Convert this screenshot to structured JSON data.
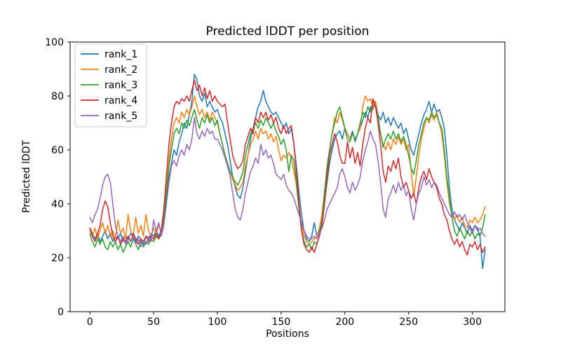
{
  "figure": {
    "background": "#ffffff",
    "spine_color": "#000000",
    "legend_border_color": "#cccccc",
    "legend_background": "#ffffff"
  },
  "chart_data": {
    "type": "line",
    "title": "Predicted lDDT per position",
    "xlabel": "Positions",
    "ylabel": "Predicted lDDT",
    "xlim": [
      -15.5,
      325.5
    ],
    "ylim": [
      0,
      100
    ],
    "x_ticks": [
      0,
      50,
      100,
      150,
      200,
      250,
      300
    ],
    "y_ticks": [
      0,
      20,
      40,
      60,
      80,
      100
    ],
    "grid": false,
    "legend_position": "upper left",
    "x_start": 0,
    "x_step": 2,
    "series": [
      {
        "name": "rank_1",
        "color": "#1f77b4",
        "values": [
          31,
          29,
          27,
          29,
          26,
          28,
          30,
          27,
          29,
          26,
          28,
          27,
          29,
          26,
          28,
          27,
          29,
          28,
          26,
          28,
          27,
          25,
          28,
          27,
          29,
          28,
          30,
          28,
          30,
          34,
          42,
          50,
          55,
          60,
          58,
          63,
          66,
          70,
          68,
          73,
          78,
          88,
          86,
          80,
          78,
          81,
          76,
          78,
          76,
          74,
          75,
          72,
          70,
          66,
          62,
          56,
          50,
          46,
          43,
          42,
          46,
          52,
          58,
          64,
          68,
          72,
          76,
          78,
          82,
          78,
          76,
          74,
          73,
          74,
          72,
          70,
          68,
          70,
          66,
          68,
          62,
          54,
          44,
          36,
          30,
          27,
          26,
          28,
          33,
          28,
          30,
          33,
          40,
          48,
          55,
          60,
          64,
          66,
          67,
          64,
          68,
          66,
          64,
          67,
          63,
          66,
          68,
          71,
          74,
          72,
          76,
          75,
          78,
          73,
          71,
          74,
          70,
          72,
          69,
          72,
          70,
          68,
          70,
          66,
          68,
          64,
          60,
          58,
          62,
          66,
          70,
          73,
          75,
          78,
          74,
          77,
          74,
          75,
          72,
          68,
          58,
          46,
          38,
          34,
          32,
          30,
          33,
          31,
          29,
          32,
          30,
          32,
          31,
          28,
          16,
          23
        ]
      },
      {
        "name": "rank_2",
        "color": "#ff7f0e",
        "values": [
          30,
          28,
          31,
          27,
          30,
          33,
          29,
          32,
          28,
          30,
          27,
          34,
          29,
          31,
          27,
          36,
          30,
          28,
          35,
          29,
          32,
          28,
          36,
          30,
          28,
          31,
          29,
          32,
          30,
          36,
          46,
          56,
          64,
          70,
          72,
          70,
          74,
          72,
          75,
          73,
          76,
          80,
          76,
          73,
          75,
          72,
          74,
          71,
          74,
          72,
          70,
          66,
          62,
          58,
          55,
          52,
          49,
          47,
          45,
          46,
          48,
          54,
          58,
          62,
          64,
          67,
          64,
          68,
          66,
          67,
          64,
          66,
          63,
          65,
          60,
          56,
          58,
          57,
          59,
          57,
          52,
          47,
          38,
          33,
          28,
          26,
          25,
          26,
          27,
          28,
          31,
          36,
          44,
          52,
          60,
          66,
          72,
          70,
          74,
          71,
          68,
          66,
          64,
          66,
          64,
          66,
          68,
          76,
          80,
          78,
          79,
          76,
          78,
          72,
          66,
          62,
          60,
          63,
          60,
          64,
          62,
          65,
          62,
          64,
          60,
          62,
          52,
          43,
          50,
          58,
          64,
          68,
          72,
          70,
          73,
          71,
          74,
          70,
          66,
          58,
          48,
          40,
          36,
          34,
          36,
          33,
          35,
          32,
          31,
          34,
          33,
          35,
          33,
          34,
          36,
          39
        ]
      },
      {
        "name": "rank_3",
        "color": "#2ca02c",
        "values": [
          29,
          26,
          24,
          27,
          25,
          27,
          24,
          23,
          26,
          24,
          26,
          23,
          25,
          22,
          24,
          26,
          24,
          27,
          25,
          23,
          26,
          24,
          26,
          25,
          27,
          26,
          28,
          27,
          29,
          35,
          44,
          54,
          60,
          66,
          68,
          66,
          70,
          68,
          71,
          69,
          72,
          75,
          71,
          68,
          72,
          70,
          73,
          70,
          72,
          69,
          71,
          66,
          62,
          58,
          55,
          52,
          50,
          48,
          47,
          49,
          52,
          58,
          62,
          66,
          68,
          70,
          68,
          71,
          69,
          72,
          70,
          68,
          70,
          67,
          65,
          62,
          64,
          60,
          52,
          58,
          56,
          48,
          38,
          30,
          26,
          24,
          25,
          23,
          26,
          25,
          28,
          34,
          44,
          54,
          60,
          66,
          70,
          74,
          76,
          72,
          68,
          64,
          63,
          66,
          64,
          66,
          70,
          74,
          72,
          76,
          74,
          78,
          76,
          72,
          66,
          61,
          64,
          66,
          64,
          67,
          64,
          66,
          63,
          65,
          62,
          58,
          53,
          51,
          56,
          62,
          66,
          70,
          72,
          71,
          74,
          72,
          73,
          70,
          68,
          60,
          50,
          42,
          35,
          30,
          28,
          31,
          29,
          27,
          30,
          28,
          30,
          27,
          29,
          28,
          31,
          36
        ]
      },
      {
        "name": "rank_4",
        "color": "#d62728",
        "values": [
          31,
          28,
          26,
          29,
          32,
          38,
          41,
          39,
          33,
          28,
          26,
          28,
          25,
          27,
          26,
          28,
          26,
          29,
          27,
          25,
          27,
          26,
          28,
          26,
          28,
          27,
          29,
          27,
          30,
          38,
          50,
          62,
          70,
          76,
          78,
          77,
          79,
          78,
          80,
          78,
          82,
          86,
          82,
          84,
          80,
          83,
          79,
          82,
          78,
          80,
          78,
          77,
          76,
          77,
          70,
          64,
          58,
          55,
          53,
          54,
          56,
          62,
          65,
          68,
          66,
          72,
          70,
          74,
          72,
          74,
          71,
          73,
          70,
          72,
          68,
          66,
          69,
          66,
          68,
          69,
          62,
          52,
          40,
          30,
          25,
          23,
          22,
          24,
          22,
          25,
          28,
          32,
          40,
          50,
          58,
          62,
          66,
          63,
          58,
          55,
          55,
          63,
          57,
          61,
          55,
          59,
          54,
          62,
          68,
          72,
          70,
          79,
          76,
          70,
          62,
          52,
          48,
          54,
          52,
          56,
          53,
          57,
          50,
          46,
          48,
          45,
          42,
          44,
          40,
          46,
          50,
          52,
          49,
          53,
          50,
          48,
          46,
          42,
          40,
          36,
          34,
          30,
          27,
          25,
          27,
          24,
          26,
          23,
          21,
          25,
          24,
          26,
          23,
          25,
          22,
          24
        ]
      },
      {
        "name": "rank_5",
        "color": "#9467bd",
        "values": [
          35,
          33,
          36,
          38,
          42,
          47,
          50,
          51,
          48,
          40,
          32,
          28,
          26,
          28,
          25,
          27,
          26,
          28,
          25,
          27,
          24,
          26,
          25,
          28,
          26,
          34,
          30,
          33,
          28,
          32,
          40,
          48,
          54,
          56,
          54,
          58,
          60,
          58,
          62,
          60,
          64,
          72,
          66,
          64,
          67,
          65,
          68,
          66,
          67,
          64,
          64,
          62,
          60,
          57,
          54,
          50,
          44,
          38,
          35,
          34,
          38,
          44,
          48,
          52,
          54,
          57,
          55,
          62,
          58,
          60,
          57,
          58,
          55,
          51,
          50,
          49,
          51,
          47,
          45,
          44,
          42,
          39,
          36,
          33,
          30,
          28,
          27,
          27,
          28,
          27,
          29,
          31,
          34,
          38,
          40,
          42,
          44,
          46,
          51,
          53,
          50,
          46,
          44,
          48,
          45,
          47,
          50,
          56,
          60,
          63,
          67,
          64,
          62,
          56,
          48,
          38,
          35,
          42,
          44,
          47,
          44,
          48,
          45,
          47,
          43,
          45,
          38,
          34,
          40,
          44,
          46,
          50,
          47,
          49,
          46,
          48,
          47,
          44,
          42,
          40,
          38,
          36,
          35,
          37,
          35,
          36,
          34,
          36,
          33,
          31,
          29,
          32,
          30,
          31,
          29,
          28
        ]
      }
    ]
  }
}
